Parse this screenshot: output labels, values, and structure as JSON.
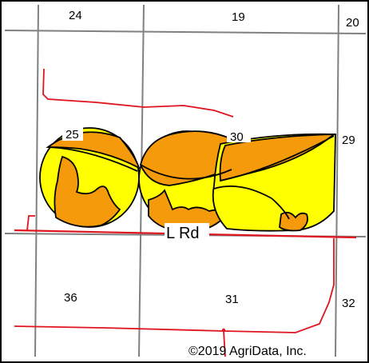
{
  "map": {
    "section_numbers": {
      "top_left": "24",
      "top_center": "19",
      "top_right": "20",
      "mid_left": "25",
      "mid_center": "30",
      "mid_right": "29",
      "bottom_left": "36",
      "bottom_center": "31",
      "bottom_right": "32"
    },
    "road_label": "L Rd",
    "copyright": "©2019 AgriData, Inc.",
    "colors": {
      "section_line": "#808080",
      "road": "#e0141e",
      "soil_orange": "#f59a0a",
      "soil_yellow": "#ffff00",
      "boundary": "#000000",
      "frame": "#000000"
    }
  }
}
